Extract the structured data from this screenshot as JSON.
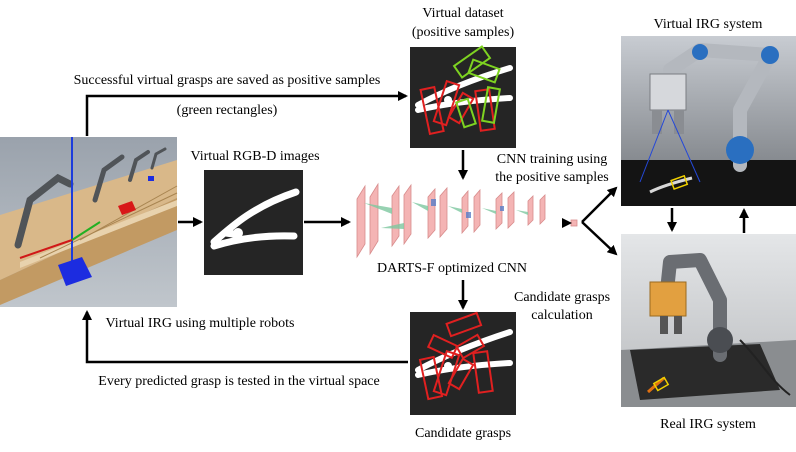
{
  "labels": {
    "virtual_dataset": "Virtual dataset",
    "positive_samples": "(positive samples)",
    "virtual_irg_system": "Virtual IRG system",
    "saved_caption": "Successful virtual grasps are saved as positive samples",
    "green_rect_caption": "(green rectangles)",
    "rgbd_images": "Virtual RGB-D images",
    "cnn_training_1": "CNN training using",
    "cnn_training_2": "the positive samples",
    "darts_cnn": "DARTS-F optimized CNN",
    "candidate_calc_1": "Candidate grasps",
    "candidate_calc_2": "calculation",
    "virtual_irg_multi": "Virtual IRG using multiple robots",
    "tested_caption": "Every predicted grasp is tested in the virtual space",
    "candidate_grasps": "Candidate grasps",
    "real_irg_system": "Real IRG system"
  },
  "colors": {
    "positive_rect": "#7ed321",
    "candidate_rect": "#e02020",
    "cnn_layer": "#f4b4b4",
    "cnn_kernel": "#7ec8a0",
    "panel_dark": "#252525"
  }
}
